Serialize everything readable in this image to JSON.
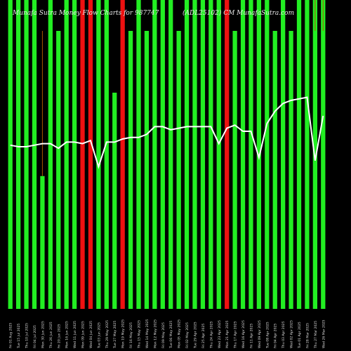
{
  "chart_data": {
    "type": "bar",
    "title_left": "Munafa Sutra Money Flow Charts for 987747",
    "title_right": "(ADL25102) CM MunafaSutra.com",
    "ylim": [
      0,
      100
    ],
    "colors": {
      "up": "#22ee22",
      "down": "#ee1111",
      "line": "#ffffff",
      "wick": "#aa5500"
    },
    "categories": [
      "Fri 01 Aug 2025",
      "Tue 15 Jul 2025",
      "Thu 10 Jul 2025",
      "Fri 04 Jul 2025",
      "Mon 30 Jun 2025",
      "Thu 26 Jun 2025",
      "Fri 20 Jun 2025",
      "Mon 16 Jun 2025",
      "Wed 11 Jun 2025",
      "Mon 09 Jun 2025",
      "Wed 04 Jun 2025",
      "Tue 03 Jun 2025",
      "Thu 29 May 2025",
      "Tue 27 May 2025",
      "Mon 19 May 2025",
      "Fri 16 May 2025",
      "Thu 15 May 2025",
      "Wed 14 May 2025",
      "Mon 12 May 2025",
      "Fri 09 May 2025",
      "Tue 06 May 2025",
      "Mon 05 May 2025",
      "Fri 02 May 2025",
      "Tue 29 Apr 2025",
      "Fri 25 Apr 2025",
      "Thu 24 Apr 2025",
      "Wed 23 Apr 2025",
      "Mon 21 Apr 2025",
      "Thu 17 Apr 2025",
      "Wed 16 Apr 2025",
      "Fri 11 Apr 2025",
      "Wed 09 Apr 2025",
      "Tue 08 Apr 2025",
      "Fri 04 Apr 2025",
      "Thu 03 Apr 2025",
      "Wed 02 Apr 2025",
      "Tue 01 Apr 2025",
      "Fri 28 Mar 2025",
      "Thu 27 Mar 2025",
      "Wed 26 Mar 2025"
    ],
    "bar_values": [
      100,
      100,
      100,
      100,
      43,
      100,
      90,
      100,
      100,
      100,
      100,
      100,
      100,
      70,
      100,
      90,
      100,
      90,
      100,
      100,
      100,
      90,
      100,
      100,
      100,
      100,
      100,
      100,
      90,
      100,
      100,
      100,
      100,
      90,
      100,
      90,
      100,
      100,
      100,
      100
    ],
    "bar_directions": [
      "up",
      "up",
      "up",
      "up",
      "up",
      "up",
      "up",
      "up",
      "up",
      "down",
      "down",
      "up",
      "up",
      "up",
      "down",
      "up",
      "up",
      "up",
      "up",
      "up",
      "up",
      "up",
      "up",
      "up",
      "up",
      "up",
      "up",
      "down",
      "up",
      "up",
      "up",
      "up",
      "up",
      "up",
      "up",
      "up",
      "up",
      "up",
      "up",
      "up"
    ],
    "wick_values": [
      0,
      0,
      0,
      0,
      90,
      0,
      0,
      0,
      0,
      0,
      0,
      0,
      0,
      0,
      0,
      0,
      0,
      0,
      0,
      0,
      0,
      0,
      0,
      0,
      0,
      0,
      0,
      0,
      0,
      0,
      0,
      0,
      0,
      0,
      0,
      0,
      0,
      0,
      90,
      90
    ],
    "line_values": [
      53,
      52.5,
      52.5,
      53,
      53.5,
      53.5,
      52,
      54,
      54,
      53.5,
      54.5,
      46,
      54,
      54,
      55,
      55.5,
      55.5,
      56.5,
      59,
      59,
      58,
      58.5,
      59,
      59,
      59,
      59,
      53.5,
      58.5,
      59.5,
      57.5,
      57.5,
      49,
      60,
      64,
      66.5,
      67.5,
      68,
      68.5,
      48,
      62.5
    ]
  }
}
